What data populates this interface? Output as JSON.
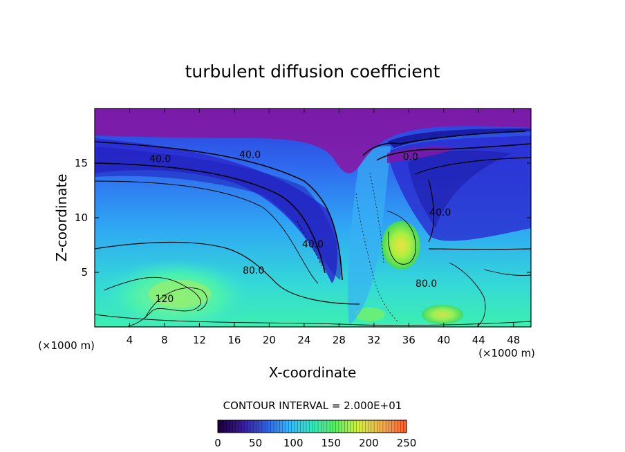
{
  "chart_data": {
    "type": "heatmap",
    "title": "turbulent diffusion coefficient",
    "xlabel": "X-coordinate",
    "ylabel": "Z-coordinate",
    "x_unit_label": "(×1000 m)",
    "x_unit_label_right": "(×1000 m)",
    "xlim": [
      0,
      50
    ],
    "ylim": [
      0,
      20
    ],
    "x_ticks": [
      4,
      8,
      12,
      16,
      20,
      24,
      28,
      32,
      36,
      40,
      44,
      48
    ],
    "x_tick_labels": [
      "4",
      "8",
      "12",
      "16",
      "20",
      "24",
      "28",
      "32",
      "36",
      "40",
      "44",
      "48"
    ],
    "y_ticks": [
      5,
      10,
      15
    ],
    "y_tick_labels": [
      "5",
      "10",
      "15"
    ],
    "contour_interval_text": "CONTOUR INTERVAL = 2.000E+01",
    "colorbar": {
      "range": [
        0,
        250
      ],
      "ticks": [
        0,
        50,
        100,
        150,
        200,
        250
      ],
      "tick_labels": [
        "0",
        "50",
        "100",
        "150",
        "200",
        "250"
      ],
      "colors": [
        "#1a003a",
        "#3a1a9a",
        "#2f5fe0",
        "#35b8ff",
        "#35e8c0",
        "#5cf060",
        "#d8f040",
        "#f0b050",
        "#ff6030"
      ]
    },
    "contour_labels": [
      {
        "text": "40.0",
        "x": 7.5,
        "y": 15.4
      },
      {
        "text": "40.0",
        "x": 17.8,
        "y": 15.8
      },
      {
        "text": "80.0",
        "x": 18.2,
        "y": 5.2
      },
      {
        "text": "120",
        "x": 8.0,
        "y": 2.6
      },
      {
        "text": "40.0",
        "x": 25.0,
        "y": 7.6
      },
      {
        "text": "40.0",
        "x": 39.6,
        "y": 10.5
      },
      {
        "text": "0.0",
        "x": 36.2,
        "y": 15.6
      },
      {
        "text": "80.0",
        "x": 38.0,
        "y": 4.0
      }
    ]
  }
}
